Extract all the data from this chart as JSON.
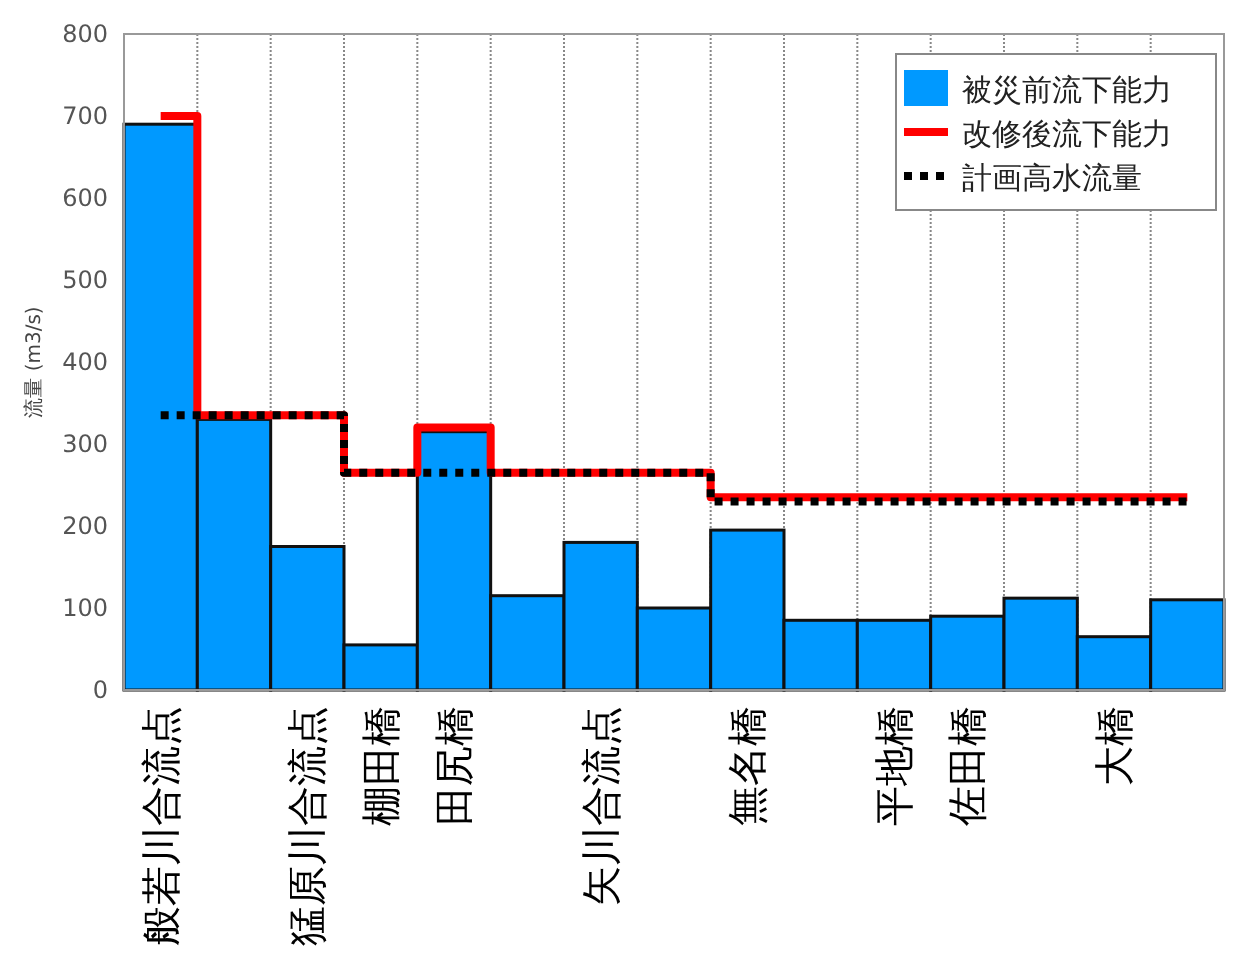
{
  "chart_data": {
    "type": "bar",
    "ylabel": "流量 (m3/s)",
    "categories": [
      "般若川合流点",
      null,
      "猛原川合流点",
      "棚田橋",
      "田尻橋",
      null,
      "矢川合流点",
      null,
      "無名橋",
      null,
      "平地橋",
      "佐田橋",
      null,
      "大橋",
      null
    ],
    "series": [
      {
        "name": "被災前流下能力",
        "color": "#0099ff",
        "values": [
          690,
          330,
          175,
          55,
          315,
          115,
          180,
          100,
          195,
          85,
          85,
          90,
          112,
          65,
          110
        ]
      },
      {
        "name": "改修後流下能力",
        "type": "step",
        "color": "#ff0000",
        "line_style": "solid",
        "values": [
          700,
          335,
          335,
          265,
          320,
          265,
          265,
          265,
          235,
          235,
          235,
          235,
          235,
          235,
          235
        ]
      },
      {
        "name": "計画高水流量",
        "type": "step",
        "color": "#000000",
        "line_style": "dotted",
        "values": [
          335,
          335,
          335,
          265,
          265,
          265,
          265,
          265,
          230,
          230,
          230,
          230,
          230,
          230,
          230
        ]
      }
    ],
    "ylim": [
      0,
      800
    ],
    "yticks": [
      0,
      100,
      200,
      300,
      400,
      500,
      600,
      700,
      800
    ],
    "grid": "x",
    "legend": "top right"
  }
}
